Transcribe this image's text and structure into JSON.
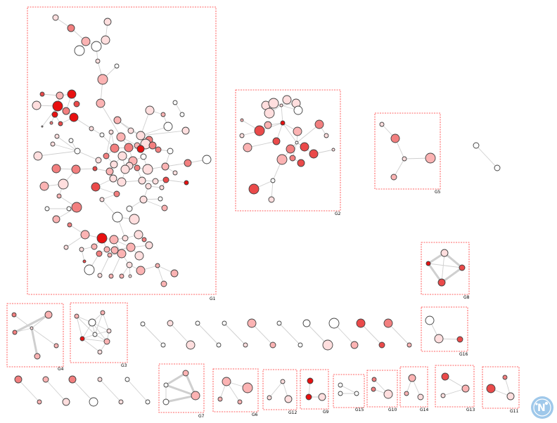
{
  "groups": [
    {
      "id": "G1",
      "label": "G1"
    },
    {
      "id": "G2",
      "label": "G2"
    },
    {
      "id": "G3",
      "label": "G3"
    },
    {
      "id": "G4",
      "label": "G4"
    },
    {
      "id": "G5",
      "label": "G5"
    },
    {
      "id": "G6",
      "label": "G6"
    },
    {
      "id": "G7",
      "label": "G7"
    },
    {
      "id": "G8",
      "label": "G8"
    },
    {
      "id": "G9",
      "label": "G9"
    },
    {
      "id": "G10",
      "label": "G10"
    },
    {
      "id": "G11",
      "label": "G11"
    },
    {
      "id": "G12",
      "label": "G12"
    },
    {
      "id": "G13",
      "label": "G13"
    },
    {
      "id": "G14",
      "label": "G14"
    },
    {
      "id": "G15",
      "label": "G15"
    },
    {
      "id": "G16",
      "label": "G16"
    }
  ],
  "colors": {
    "group_border": "#ff3333",
    "edge": "#cfcfcf",
    "node_stroke": "#404040",
    "node_scale": [
      "#ffffff",
      "#ffdede",
      "#fbb3b3",
      "#f27f7f",
      "#ea4a4a",
      "#e81010"
    ]
  },
  "icons": {
    "logo": "network-logo-icon"
  }
}
